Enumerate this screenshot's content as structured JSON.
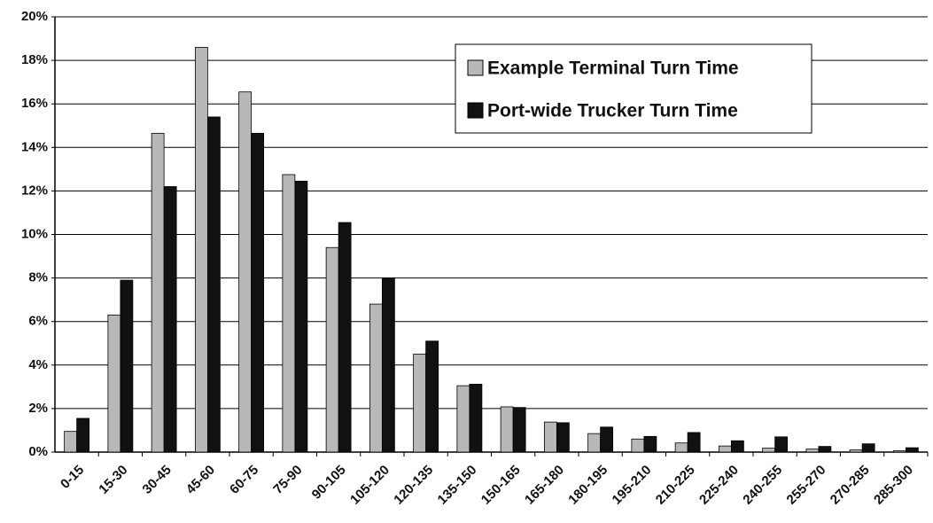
{
  "chart_data": {
    "type": "bar",
    "categories": [
      "0-15",
      "15-30",
      "30-45",
      "45-60",
      "60-75",
      "75-90",
      "90-105",
      "105-120",
      "120-135",
      "135-150",
      "150-165",
      "165-180",
      "180-195",
      "195-210",
      "210-225",
      "225-240",
      "240-255",
      "255-270",
      "270-285",
      "285-300"
    ],
    "series": [
      {
        "name": "Example Terminal Turn Time",
        "color": "#b8b8b8",
        "values": [
          0.95,
          6.3,
          14.65,
          18.6,
          16.55,
          12.75,
          9.4,
          6.8,
          4.5,
          3.05,
          2.08,
          1.38,
          0.85,
          0.6,
          0.42,
          0.28,
          0.18,
          0.14,
          0.1,
          0.06
        ]
      },
      {
        "name": "Port-wide Trucker Turn Time",
        "color": "#111111",
        "values": [
          1.55,
          7.9,
          12.2,
          15.4,
          14.65,
          12.45,
          10.55,
          8.0,
          5.1,
          3.12,
          2.05,
          1.35,
          1.15,
          0.72,
          0.9,
          0.52,
          0.7,
          0.26,
          0.38,
          0.2
        ]
      }
    ],
    "ylim": [
      0,
      20
    ],
    "yticks": [
      {
        "value": 0,
        "label": "0%"
      },
      {
        "value": 2,
        "label": "2%"
      },
      {
        "value": 4,
        "label": "4%"
      },
      {
        "value": 6,
        "label": "6%"
      },
      {
        "value": 8,
        "label": "8%"
      },
      {
        "value": 10,
        "label": "10%"
      },
      {
        "value": 12,
        "label": "12%"
      },
      {
        "value": 14,
        "label": "14%"
      },
      {
        "value": 16,
        "label": "16%"
      },
      {
        "value": 18,
        "label": "18%"
      },
      {
        "value": 20,
        "label": "20%"
      }
    ],
    "grid": true,
    "legend": "upper right"
  }
}
